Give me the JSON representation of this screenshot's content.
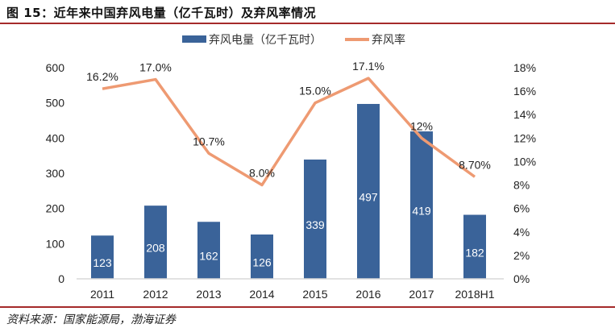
{
  "header": {
    "title": "图 15：近年来中国弃风电量（亿千瓦时）及弃风率情况"
  },
  "footer": {
    "source": "资料来源：国家能源局，渤海证券"
  },
  "chart_data": {
    "type": "bar+line",
    "title": "",
    "categories": [
      "2011",
      "2012",
      "2013",
      "2014",
      "2015",
      "2016",
      "2017",
      "2018H1"
    ],
    "series": [
      {
        "name": "弃风电量（亿千瓦时）",
        "type": "bar",
        "axis": "left",
        "color": "#3a6399",
        "values": [
          123,
          208,
          162,
          126,
          339,
          497,
          419,
          182
        ],
        "labels": [
          "123",
          "208",
          "162",
          "126",
          "339",
          "497",
          "419",
          "182"
        ]
      },
      {
        "name": "弃风率",
        "type": "line",
        "axis": "right",
        "color": "#ee9a72",
        "values": [
          16.2,
          17.0,
          10.7,
          8.0,
          15.0,
          17.1,
          12.0,
          8.7
        ],
        "labels": [
          "16.2%",
          "17.0%",
          "10.7%",
          "8.0%",
          "15.0%",
          "17.1%",
          "12%",
          "8.70%"
        ]
      }
    ],
    "left_axis": {
      "range": [
        0,
        600
      ],
      "ticks": [
        "0",
        "100",
        "200",
        "300",
        "400",
        "500",
        "600"
      ]
    },
    "right_axis": {
      "range": [
        0,
        18
      ],
      "ticks": [
        "0%",
        "2%",
        "4%",
        "6%",
        "8%",
        "10%",
        "12%",
        "14%",
        "16%",
        "18%"
      ]
    },
    "grid": false,
    "legend_position": "top"
  }
}
